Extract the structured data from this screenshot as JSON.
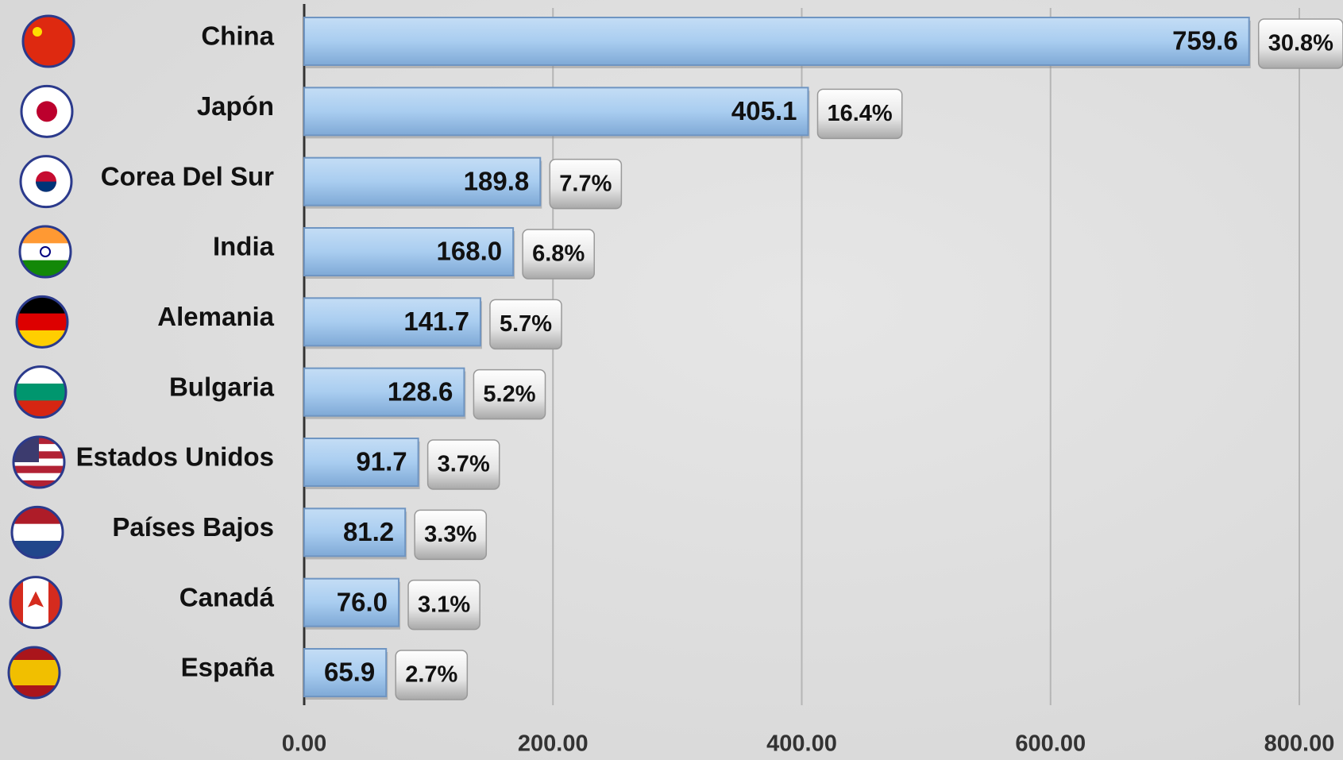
{
  "chart_data": {
    "type": "bar",
    "orientation": "horizontal",
    "categories": [
      "China",
      "Japón",
      "Corea Del Sur",
      "India",
      "Alemania",
      "Bulgaria",
      "Estados Unidos",
      "Países Bajos",
      "Canadá",
      "España"
    ],
    "values": [
      759.6,
      405.1,
      189.8,
      168.0,
      141.7,
      128.6,
      91.7,
      81.2,
      76.0,
      65.9
    ],
    "value_labels": [
      "759.6",
      "405.1",
      "189.8",
      "168.0",
      "141.7",
      "128.6",
      "91.7",
      "81.2",
      "76.0",
      "65.9"
    ],
    "shares": [
      30.8,
      16.4,
      7.7,
      6.8,
      5.7,
      5.2,
      3.7,
      3.3,
      3.1,
      2.7
    ],
    "share_labels": [
      "30.8%",
      "16.4%",
      "7.7%",
      "6.8%",
      "5.7%",
      "5.2%",
      "3.7%",
      "3.3%",
      "3.1%",
      "2.7%"
    ],
    "color": "#a9cdf0",
    "xlim": [
      0,
      800
    ],
    "xticks": [
      {
        "value": 0,
        "label": "0.00"
      },
      {
        "value": 200,
        "label": "200.00"
      },
      {
        "value": 400,
        "label": "400.00"
      },
      {
        "value": 600,
        "label": "600.00"
      },
      {
        "value": 800,
        "label": "800.00"
      }
    ],
    "grid": true
  }
}
